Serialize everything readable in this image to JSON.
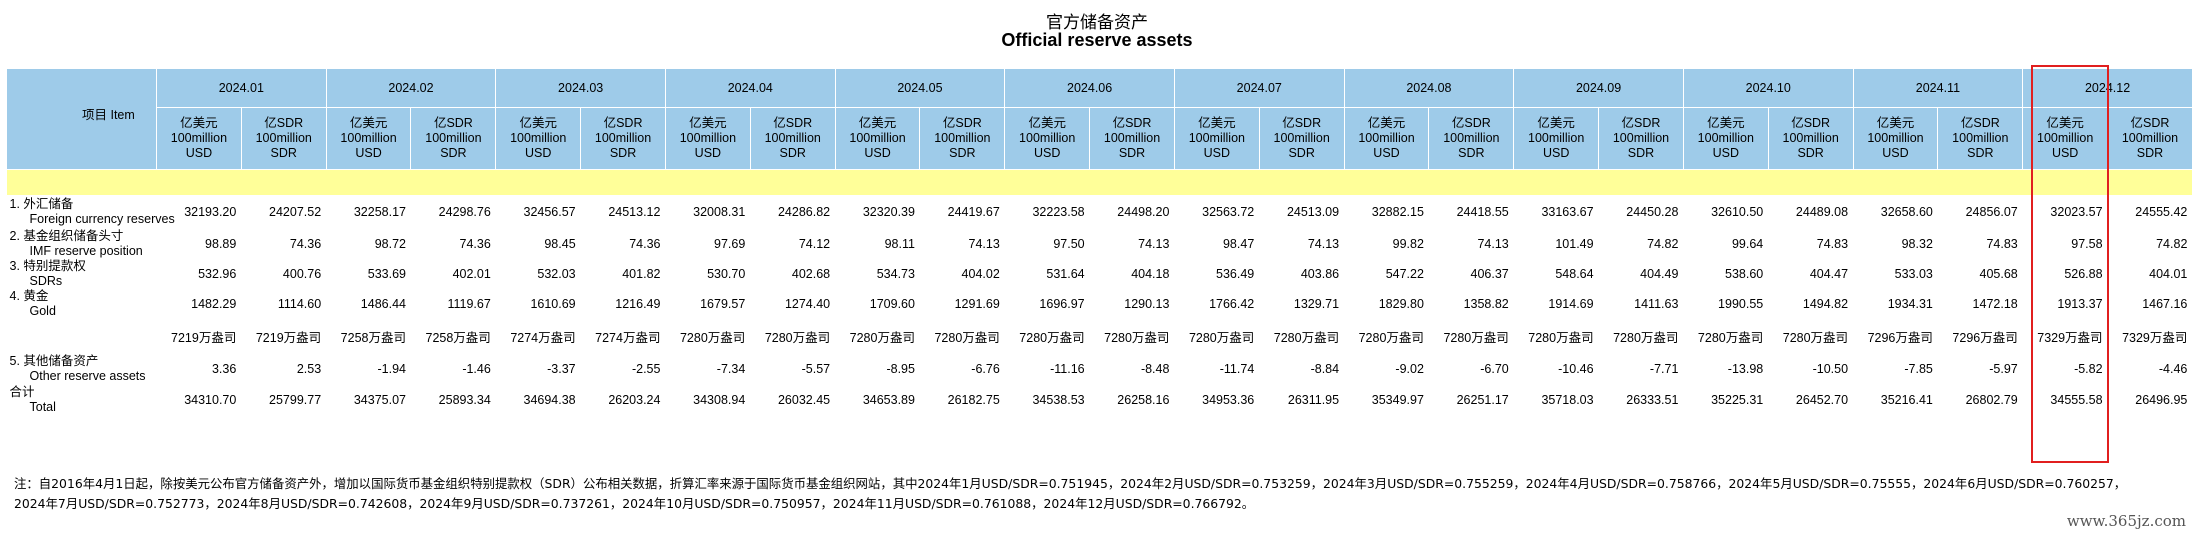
{
  "title_cn": "官方储备资产",
  "title_en": "Official reserve assets",
  "item_header": "项目 Item",
  "months": [
    "2024.01",
    "2024.02",
    "2024.03",
    "2024.04",
    "2024.05",
    "2024.06",
    "2024.07",
    "2024.08",
    "2024.09",
    "2024.10",
    "2024.11",
    "2024.12"
  ],
  "unit_usd": [
    "亿美元",
    "100million",
    "USD"
  ],
  "unit_sdr": [
    "亿SDR",
    "100million",
    "SDR"
  ],
  "rows": [
    {
      "cn": "1. 外汇储备",
      "en": "Foreign currency reserves",
      "values": [
        "32193.20",
        "24207.52",
        "32258.17",
        "24298.76",
        "32456.57",
        "24513.12",
        "32008.31",
        "24286.82",
        "32320.39",
        "24419.67",
        "32223.58",
        "24498.20",
        "32563.72",
        "24513.09",
        "32882.15",
        "24418.55",
        "33163.67",
        "24450.28",
        "32610.50",
        "24489.08",
        "32658.60",
        "24856.07",
        "32023.57",
        "24555.42"
      ]
    },
    {
      "cn": "2. 基金组织储备头寸",
      "en": "IMF reserve position",
      "values": [
        "98.89",
        "74.36",
        "98.72",
        "74.36",
        "98.45",
        "74.36",
        "97.69",
        "74.12",
        "98.11",
        "74.13",
        "97.50",
        "74.13",
        "98.47",
        "74.13",
        "99.82",
        "74.13",
        "101.49",
        "74.82",
        "99.64",
        "74.83",
        "98.32",
        "74.83",
        "97.58",
        "74.82"
      ]
    },
    {
      "cn": "3. 特别提款权",
      "en": "SDRs",
      "values": [
        "532.96",
        "400.76",
        "533.69",
        "402.01",
        "532.03",
        "401.82",
        "530.70",
        "402.68",
        "534.73",
        "404.02",
        "531.64",
        "404.18",
        "536.49",
        "403.86",
        "547.22",
        "406.37",
        "548.64",
        "404.49",
        "538.60",
        "404.47",
        "533.03",
        "405.68",
        "526.88",
        "404.01"
      ]
    },
    {
      "cn": "4. 黄金",
      "en": "Gold",
      "values": [
        "1482.29",
        "1114.60",
        "1486.44",
        "1119.67",
        "1610.69",
        "1216.49",
        "1679.57",
        "1274.40",
        "1709.60",
        "1291.69",
        "1696.97",
        "1290.13",
        "1766.42",
        "1329.71",
        "1829.80",
        "1358.82",
        "1914.69",
        "1411.63",
        "1990.55",
        "1494.82",
        "1934.31",
        "1472.18",
        "1913.37",
        "1467.16"
      ]
    },
    {
      "cn": "",
      "en": "",
      "values": [
        "7219万盎司",
        "7219万盎司",
        "7258万盎司",
        "7258万盎司",
        "7274万盎司",
        "7274万盎司",
        "7280万盎司",
        "7280万盎司",
        "7280万盎司",
        "7280万盎司",
        "7280万盎司",
        "7280万盎司",
        "7280万盎司",
        "7280万盎司",
        "7280万盎司",
        "7280万盎司",
        "7280万盎司",
        "7280万盎司",
        "7280万盎司",
        "7280万盎司",
        "7296万盎司",
        "7296万盎司",
        "7329万盎司",
        "7329万盎司"
      ]
    },
    {
      "cn": "5. 其他储备资产",
      "en": "Other reserve assets",
      "values": [
        "3.36",
        "2.53",
        "-1.94",
        "-1.46",
        "-3.37",
        "-2.55",
        "-7.34",
        "-5.57",
        "-8.95",
        "-6.76",
        "-11.16",
        "-8.48",
        "-11.74",
        "-8.84",
        "-9.02",
        "-6.70",
        "-10.46",
        "-7.71",
        "-13.98",
        "-10.50",
        "-7.85",
        "-5.97",
        "-5.82",
        "-4.46"
      ]
    },
    {
      "cn": "合计",
      "en": "Total",
      "values": [
        "34310.70",
        "25799.77",
        "34375.07",
        "25893.34",
        "34694.38",
        "26203.24",
        "34308.94",
        "26032.45",
        "34653.89",
        "26182.75",
        "34538.53",
        "26258.16",
        "34953.36",
        "26311.95",
        "35349.97",
        "26251.17",
        "35718.03",
        "26333.51",
        "35225.31",
        "26452.70",
        "35216.41",
        "26802.79",
        "34555.58",
        "26496.95"
      ]
    }
  ],
  "note_line1": "注：自2016年4月1日起，除按美元公布官方储备资产外，增加以国际货币基金组织特别提款权（SDR）公布相关数据，折算汇率来源于国际货币基金组织网站，其中2024年1月USD/SDR=0.751945，2024年2月USD/SDR=0.753259，2024年3月USD/SDR=0.755259，2024年4月USD/SDR=0.758766，2024年5月USD/SDR=0.75555，2024年6月USD/SDR=0.760257，",
  "note_line2": "2024年7月USD/SDR=0.752773，2024年8月USD/SDR=0.742608，2024年9月USD/SDR=0.737261，2024年10月USD/SDR=0.750957，2024年11月USD/SDR=0.761088，2024年12月USD/SDR=0.766792。",
  "watermark": "www.365jz.com",
  "highlight_color": "#e11f1f",
  "header_color": "#9ecbe9",
  "band_color": "#ffff99"
}
